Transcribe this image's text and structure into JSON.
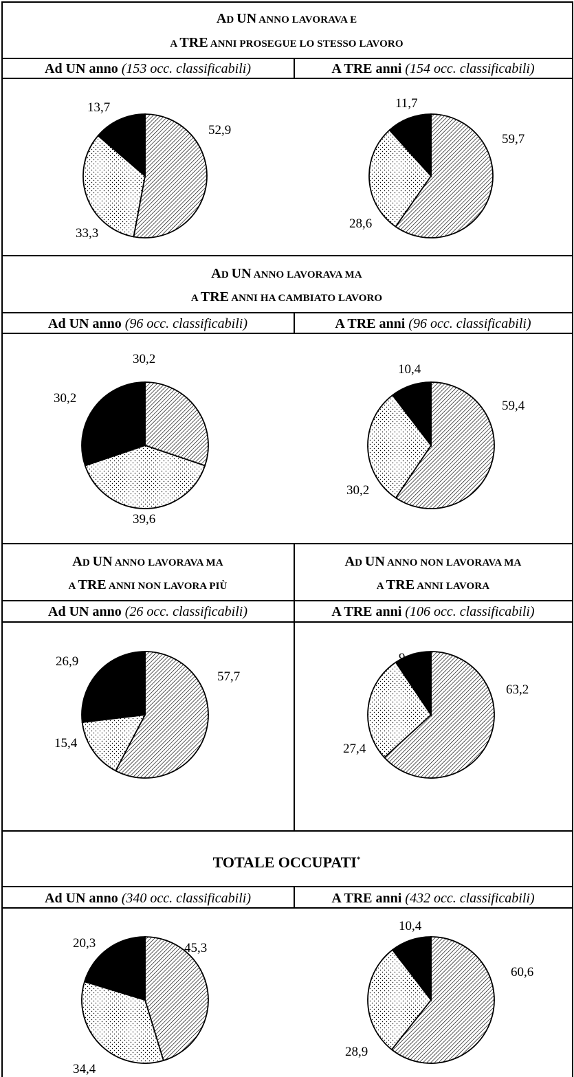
{
  "sections": [
    {
      "heading_lines": [
        [
          {
            "t": "A",
            "big": true
          },
          {
            "t": "D "
          },
          {
            "t": "UN",
            "big": true
          },
          {
            "t": " ANNO LAVORAVA E"
          }
        ],
        [
          {
            "t": "A "
          },
          {
            "t": "TRE",
            "big": true
          },
          {
            "t": " ANNI PROSEGUE LO STESSO LAVORO"
          }
        ]
      ],
      "left_col": {
        "bold": "Ad UN anno",
        "italic": "(153 occ. classificabili)"
      },
      "right_col": {
        "bold": "A TRE anni",
        "italic": "(154 occ. classificabili)"
      }
    },
    {
      "heading_lines": [
        [
          {
            "t": "A",
            "big": true
          },
          {
            "t": "D "
          },
          {
            "t": "UN",
            "big": true
          },
          {
            "t": " ANNO LAVORAVA MA"
          }
        ],
        [
          {
            "t": "A "
          },
          {
            "t": "TRE",
            "big": true
          },
          {
            "t": " ANNI HA CAMBIATO LAVORO"
          }
        ]
      ],
      "left_col": {
        "bold": "Ad UN anno",
        "italic": "(96 occ. classificabili)"
      },
      "right_col": {
        "bold": "A TRE anni",
        "italic": "(96 occ. classificabili)"
      }
    },
    {
      "left_heading_lines": [
        [
          {
            "t": "A",
            "big": true
          },
          {
            "t": "D "
          },
          {
            "t": "UN",
            "big": true
          },
          {
            "t": " ANNO LAVORAVA MA"
          }
        ],
        [
          {
            "t": "A "
          },
          {
            "t": "TRE",
            "big": true
          },
          {
            "t": " ANNI NON LAVORA PIÙ"
          }
        ]
      ],
      "right_heading_lines": [
        [
          {
            "t": "A",
            "big": true
          },
          {
            "t": "D "
          },
          {
            "t": "UN",
            "big": true
          },
          {
            "t": " ANNO NON LAVORAVA MA"
          }
        ],
        [
          {
            "t": "A "
          },
          {
            "t": "TRE",
            "big": true
          },
          {
            "t": " ANNI LAVORA"
          }
        ]
      ],
      "left_col": {
        "bold": "Ad UN anno",
        "italic": "(26 occ. classificabili)"
      },
      "right_col": {
        "bold": "A TRE anni",
        "italic": "(106 occ. classificabili)"
      }
    },
    {
      "heading_total": "TOTALE OCCUPATI",
      "heading_sup": "*",
      "left_col": {
        "bold": "Ad UN anno",
        "italic": "(340 occ. classificabili)"
      },
      "right_col": {
        "bold": "A TRE anni",
        "italic": "(432 occ. classificabili)"
      }
    }
  ],
  "chart_data": [
    {
      "type": "pie",
      "values": [
        52.9,
        33.3,
        13.7
      ],
      "labels": [
        "52,9",
        "33,3",
        "13,7"
      ],
      "fills": [
        "hatch",
        "dots",
        "black"
      ]
    },
    {
      "type": "pie",
      "values": [
        59.7,
        28.6,
        11.7
      ],
      "labels": [
        "59,7",
        "28,6",
        "11,7"
      ],
      "fills": [
        "hatch",
        "dots",
        "black"
      ]
    },
    {
      "type": "pie",
      "values": [
        30.2,
        39.6,
        30.2
      ],
      "labels": [
        "30,2",
        "39,6",
        "30,2"
      ],
      "fills": [
        "hatch",
        "dots",
        "black"
      ]
    },
    {
      "type": "pie",
      "values": [
        59.4,
        30.2,
        10.4
      ],
      "labels": [
        "59,4",
        "30,2",
        "10,4"
      ],
      "fills": [
        "hatch",
        "dots",
        "black"
      ]
    },
    {
      "type": "pie",
      "values": [
        57.7,
        15.4,
        26.9
      ],
      "labels": [
        "57,7",
        "15,4",
        "26,9"
      ],
      "fills": [
        "hatch",
        "dots",
        "black"
      ]
    },
    {
      "type": "pie",
      "values": [
        63.2,
        27.4,
        9.4
      ],
      "labels": [
        "63,2",
        "27,4",
        "9,4"
      ],
      "fills": [
        "hatch",
        "dots",
        "black"
      ]
    },
    {
      "type": "pie",
      "values": [
        45.3,
        34.4,
        20.3
      ],
      "labels": [
        "45,3",
        "34,4",
        "20,3"
      ],
      "fills": [
        "hatch",
        "dots",
        "black"
      ]
    },
    {
      "type": "pie",
      "values": [
        60.6,
        28.9,
        10.4
      ],
      "labels": [
        "60,6",
        "28,9",
        "10,4"
      ],
      "fills": [
        "hatch",
        "dots",
        "black"
      ]
    }
  ]
}
